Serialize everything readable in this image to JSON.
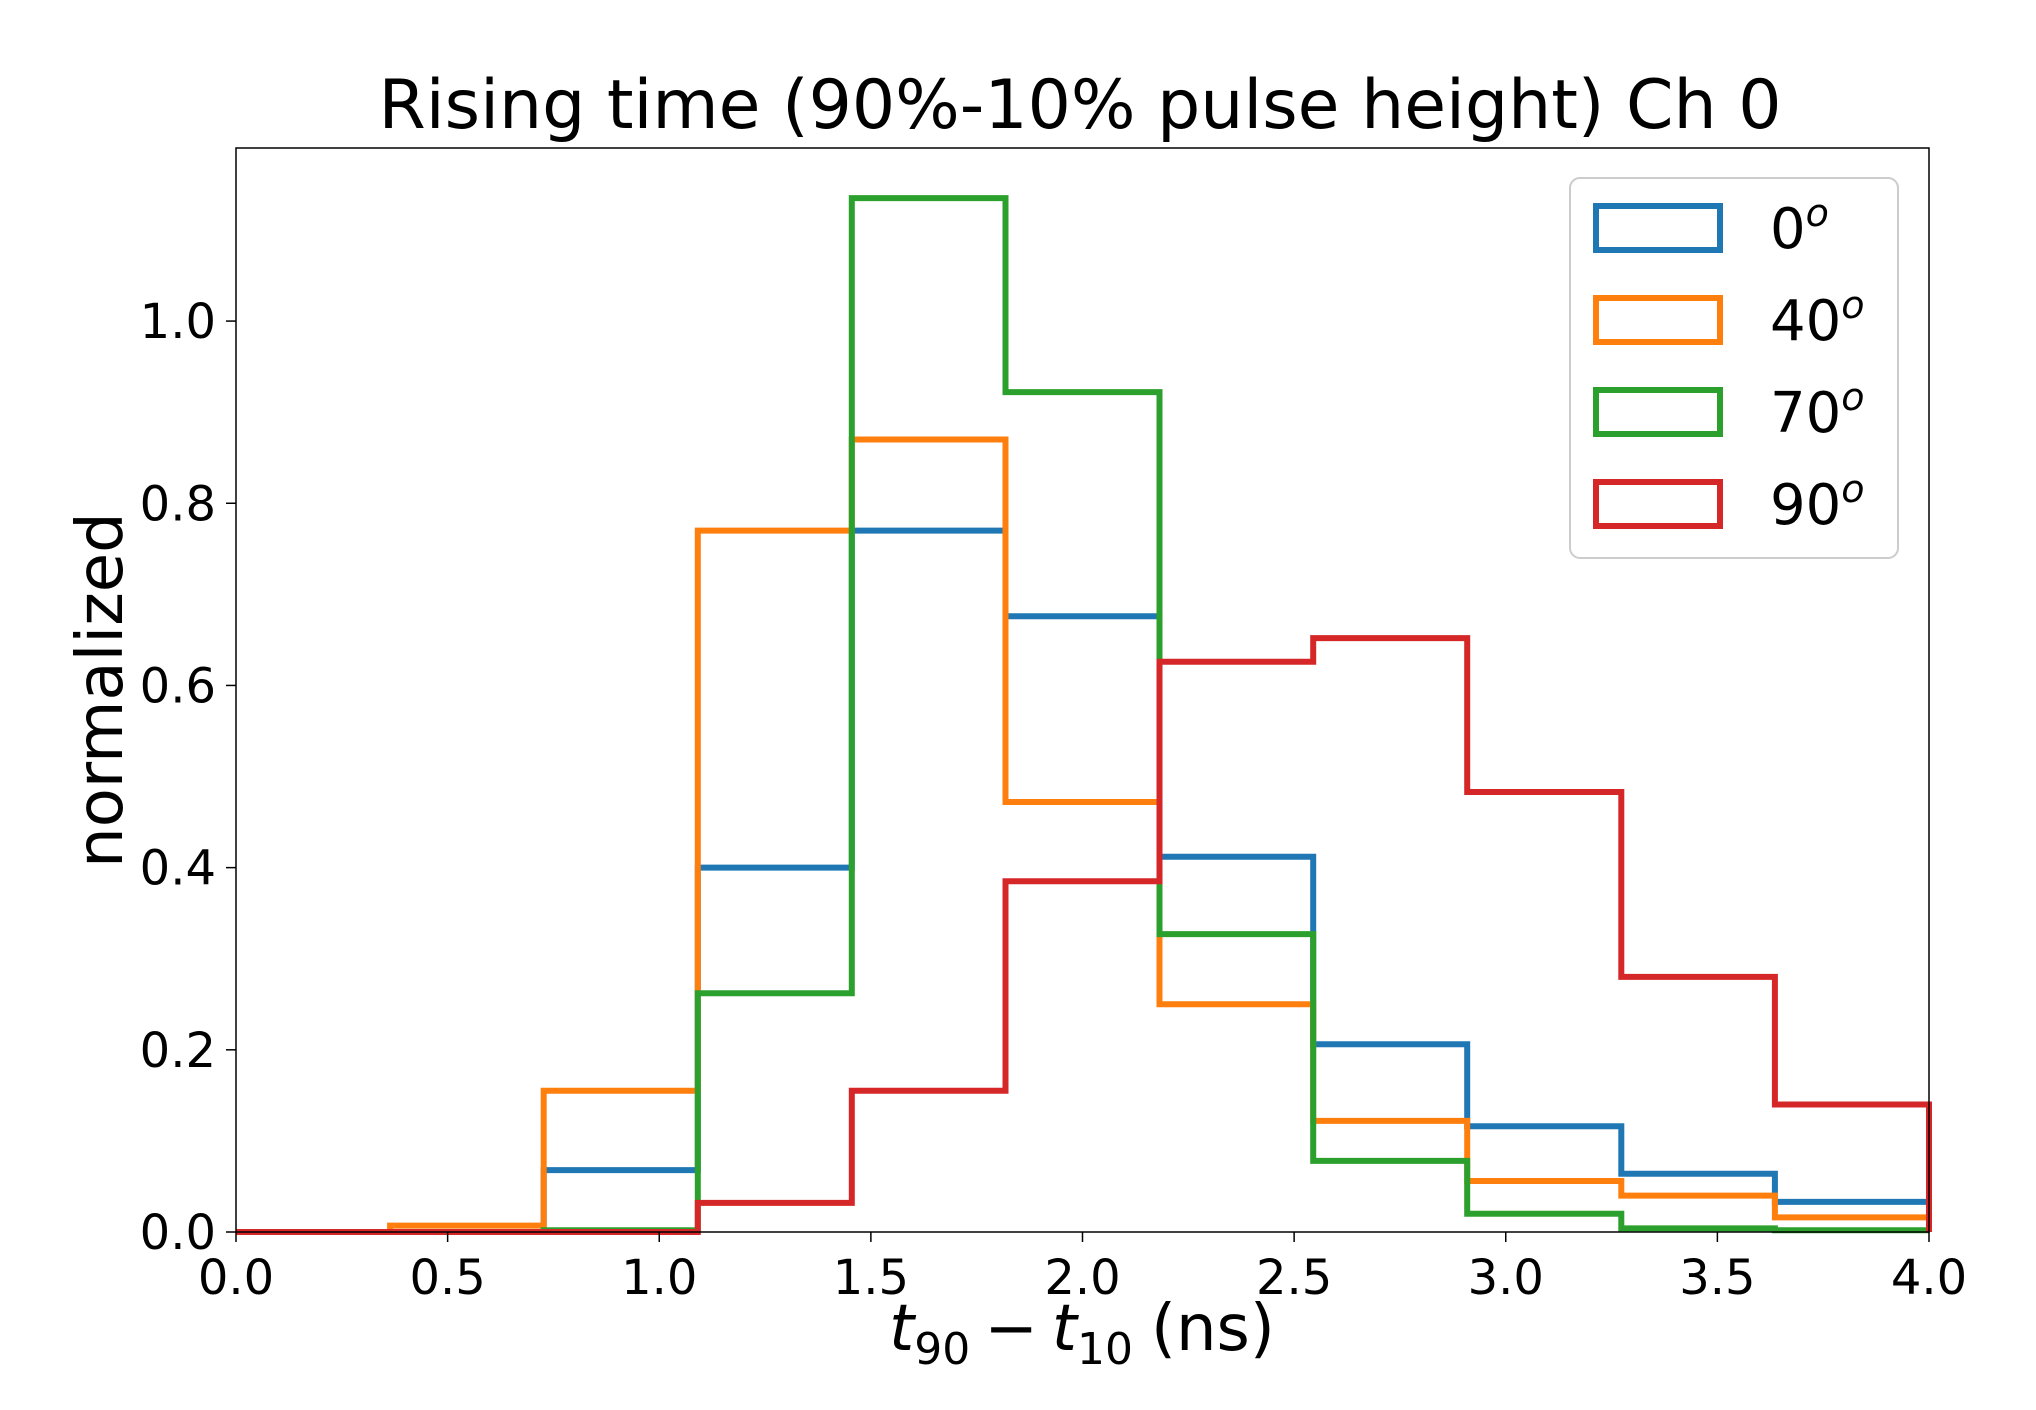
{
  "chart_data": {
    "type": "histogram",
    "title": "Rising time (90%-10% pulse height) Ch 0",
    "xlabel": {
      "t90_var": "t",
      "t90_sub": "90",
      "minus": "−",
      "t10_var": "t",
      "t10_sub": "10",
      "unit": "(ns)"
    },
    "ylabel": "normalized",
    "xlim": [
      0.0,
      4.0
    ],
    "ylim": [
      0.0,
      1.19
    ],
    "xticks": [
      "0.0",
      "0.5",
      "1.0",
      "1.5",
      "2.0",
      "2.5",
      "3.0",
      "3.5",
      "4.0"
    ],
    "xtick_values": [
      0.0,
      0.5,
      1.0,
      1.5,
      2.0,
      2.5,
      3.0,
      3.5,
      4.0
    ],
    "yticks": [
      "0.0",
      "0.2",
      "0.4",
      "0.6",
      "0.8",
      "1.0"
    ],
    "ytick_values": [
      0.0,
      0.2,
      0.4,
      0.6,
      0.8,
      1.0
    ],
    "bin_edges": [
      0.0,
      0.364,
      0.727,
      1.091,
      1.455,
      1.818,
      2.182,
      2.545,
      2.909,
      3.273,
      3.636,
      4.0
    ],
    "legend_position": "top-right",
    "series": [
      {
        "name": "0",
        "sup": "o",
        "color": "#1f77b4",
        "values": [
          0.0,
          0.0,
          0.068,
          0.4,
          0.77,
          0.676,
          0.412,
          0.206,
          0.116,
          0.064,
          0.033
        ]
      },
      {
        "name": "40",
        "sup": "o",
        "color": "#ff7f0e",
        "values": [
          0.0,
          0.007,
          0.155,
          0.77,
          0.87,
          0.472,
          0.25,
          0.122,
          0.056,
          0.04,
          0.016
        ]
      },
      {
        "name": "70",
        "sup": "o",
        "color": "#2ca02c",
        "values": [
          0.0,
          0.0,
          0.002,
          0.262,
          1.135,
          0.922,
          0.327,
          0.078,
          0.02,
          0.004,
          0.002
        ]
      },
      {
        "name": "90",
        "sup": "o",
        "color": "#d62728",
        "values": [
          0.0,
          0.0,
          0.0,
          0.032,
          0.155,
          0.385,
          0.626,
          0.652,
          0.483,
          0.28,
          0.14
        ]
      }
    ]
  }
}
